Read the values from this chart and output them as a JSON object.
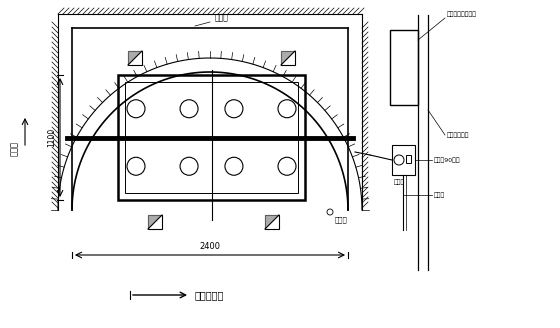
{
  "bg_color": "#ffffff",
  "line_color": "#000000",
  "fig_width": 5.6,
  "fig_height": 3.28,
  "dpi": 100,
  "labels": {
    "steel_plate": "挡钢板",
    "water_dir": "水流向",
    "drainage": "积水坑",
    "dim_2400": "2400",
    "dim_1100": "1100",
    "south_dir": "恩施（南）",
    "pump_label": "砼泵（90束）",
    "pipe_label": "砼管道",
    "pump_station": "南泵送场使道",
    "sand_label": "砂、石、水洗料场",
    "junction": "井合号"
  }
}
